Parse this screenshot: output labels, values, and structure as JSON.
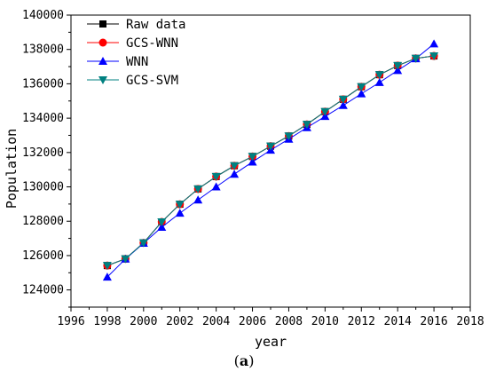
{
  "caption": {
    "open": "(",
    "letter": "a",
    "close": ")"
  },
  "chart_data": {
    "type": "line",
    "xlabel": "year",
    "ylabel": "Population",
    "xlim": [
      1996,
      2018
    ],
    "ylim": [
      123000,
      140000
    ],
    "x_ticks": [
      1996,
      1998,
      2000,
      2002,
      2004,
      2006,
      2008,
      2010,
      2012,
      2014,
      2016,
      2018
    ],
    "y_ticks": [
      124000,
      126000,
      128000,
      130000,
      132000,
      134000,
      136000,
      138000,
      140000
    ],
    "grid": false,
    "legend": "top-left",
    "x": [
      1998,
      1999,
      2000,
      2001,
      2002,
      2003,
      2004,
      2005,
      2006,
      2007,
      2008,
      2009,
      2010,
      2011,
      2012,
      2013,
      2014,
      2015,
      2016
    ],
    "series": [
      {
        "name": "Raw data",
        "color": "#000000",
        "marker": "square",
        "values": [
          125420,
          125810,
          126740,
          127960,
          128990,
          129880,
          130600,
          131230,
          131770,
          132370,
          132960,
          133640,
          134380,
          135100,
          135830,
          136530,
          137060,
          137480,
          137620
        ]
      },
      {
        "name": "GCS-WNN",
        "color": "#ff0000",
        "marker": "circle",
        "values": [
          125420,
          125810,
          126740,
          127960,
          128990,
          129880,
          130600,
          131230,
          131770,
          132370,
          132960,
          133640,
          134380,
          135100,
          135830,
          136530,
          137060,
          137480,
          137620
        ]
      },
      {
        "name": "WNN",
        "color": "#0000ff",
        "marker": "triangle-up",
        "values": [
          124750,
          125800,
          126720,
          127650,
          128470,
          129240,
          130000,
          130740,
          131450,
          132140,
          132780,
          133450,
          134100,
          134740,
          135420,
          136080,
          136780,
          137460,
          138330
        ]
      },
      {
        "name": "GCS-SVM",
        "color": "#008080",
        "marker": "triangle-down",
        "values": [
          125420,
          125810,
          126740,
          127960,
          128990,
          129880,
          130600,
          131230,
          131770,
          132370,
          132960,
          133640,
          134380,
          135100,
          135830,
          136530,
          137060,
          137480,
          137620
        ]
      }
    ]
  }
}
